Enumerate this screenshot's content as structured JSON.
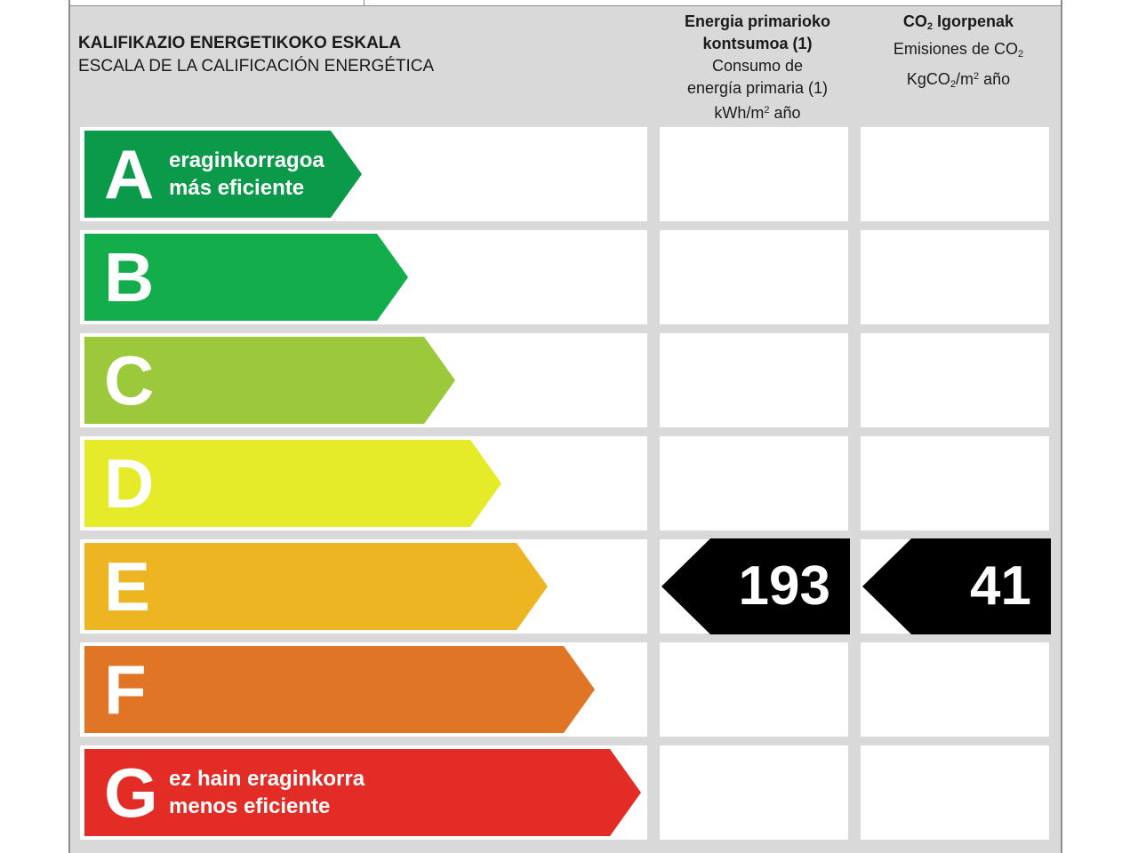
{
  "scale_title": {
    "eu": "KALIFIKAZIO ENERGETIKOKO ESKALA",
    "es": "ESCALA DE LA CALIFICACIÓN ENERGÉTICA"
  },
  "columns": {
    "energy": {
      "eu_line1": "Energia primarioko",
      "eu_line2": "kontsumoa (1)",
      "es_line1": "Consumo de",
      "es_line2": "energía primaria (1)",
      "unit_a": "kWh/m",
      "unit_exp": "2",
      "unit_b": " año"
    },
    "co2": {
      "eu_a": "CO",
      "eu_sub": "2",
      "eu_b": " Igorpenak",
      "es_a": "Emisiones de CO",
      "es_sub": "2",
      "unit_a": "KgCO",
      "unit_sub": "2",
      "unit_b": "/m",
      "unit_exp": "2",
      "unit_c": " año"
    }
  },
  "ratings": [
    {
      "letter": "A",
      "line1": "eraginkorragoa",
      "line2": "más eficiente",
      "color": "#0a9a49"
    },
    {
      "letter": "B",
      "line1": "",
      "line2": "",
      "color": "#14ad4b"
    },
    {
      "letter": "C",
      "line1": "",
      "line2": "",
      "color": "#9cc93b"
    },
    {
      "letter": "D",
      "line1": "",
      "line2": "",
      "color": "#e5ea29"
    },
    {
      "letter": "E",
      "line1": "",
      "line2": "",
      "color": "#edb521"
    },
    {
      "letter": "F",
      "line1": "",
      "line2": "",
      "color": "#e17526"
    },
    {
      "letter": "G",
      "line1": "ez hain eraginkorra",
      "line2": "menos eficiente",
      "color": "#e32c26"
    }
  ],
  "result": {
    "rating_letter": "E",
    "energy_value": "193",
    "co2_value": "41",
    "badge_color": "#000000"
  }
}
